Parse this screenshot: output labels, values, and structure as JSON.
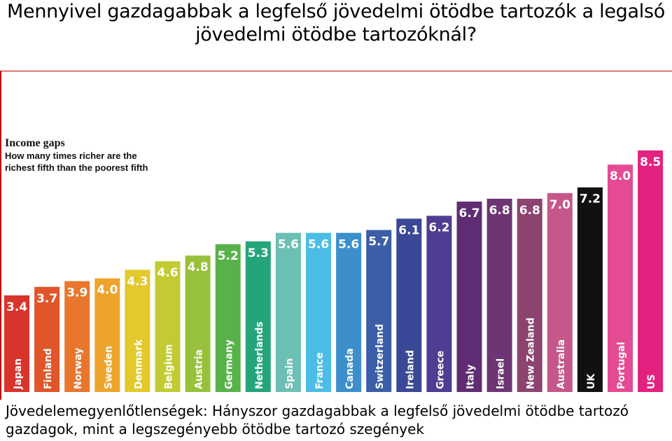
{
  "slide": {
    "title": "Mennyivel gazdagabbak a legfelső jövedelmi ötödbe tartozók a legalsó jövedelmi ötödbe tartozóknál?",
    "caption": "Jövedelemegyenlőtlenségek: Hányszor gazdagabbak a legfelső jövedelmi ötödbe tartozó gazdagok, mint a legszegényebb ötödbe tartozó szegények"
  },
  "chart_data": {
    "type": "bar",
    "title": "Income gaps",
    "subtitle": "How many times richer are the richest fifth than the poorest fifth",
    "categories": [
      "Japan",
      "Finland",
      "Norway",
      "Sweden",
      "Denmark",
      "Belgium",
      "Austria",
      "Germany",
      "Netherlands",
      "Spain",
      "France",
      "Canada",
      "Switzerland",
      "Ireland",
      "Greece",
      "Italy",
      "Israel",
      "New Zealand",
      "Australia",
      "UK",
      "Portugal",
      "US"
    ],
    "values": [
      3.4,
      3.7,
      3.9,
      4.0,
      4.3,
      4.6,
      4.8,
      5.2,
      5.3,
      5.6,
      5.6,
      5.6,
      5.7,
      6.1,
      6.2,
      6.7,
      6.8,
      6.8,
      7.0,
      7.2,
      8.0,
      8.5
    ],
    "value_labels": [
      "3.4",
      "3.7",
      "3.9",
      "4.0",
      "4.3",
      "4.6",
      "4.8",
      "5.2",
      "5.3",
      "5.6",
      "5.6",
      "5.6",
      "5.7",
      "6.1",
      "6.2",
      "6.7",
      "6.8",
      "6.8",
      "7.0",
      "7.2",
      "8.0",
      "8.5"
    ],
    "colors": [
      "#d9342b",
      "#e0552a",
      "#e8762c",
      "#eea42c",
      "#e3c92b",
      "#c2cc32",
      "#97c13b",
      "#58b24a",
      "#24a579",
      "#6cbfb3",
      "#4bbde6",
      "#3c8fca",
      "#3b5ea7",
      "#3a4897",
      "#4e3d92",
      "#602c73",
      "#6d3573",
      "#8c436f",
      "#c6578a",
      "#111111",
      "#e44b92",
      "#e3217e"
    ],
    "ylim": [
      0,
      9
    ],
    "grid": false,
    "legend": "none"
  }
}
